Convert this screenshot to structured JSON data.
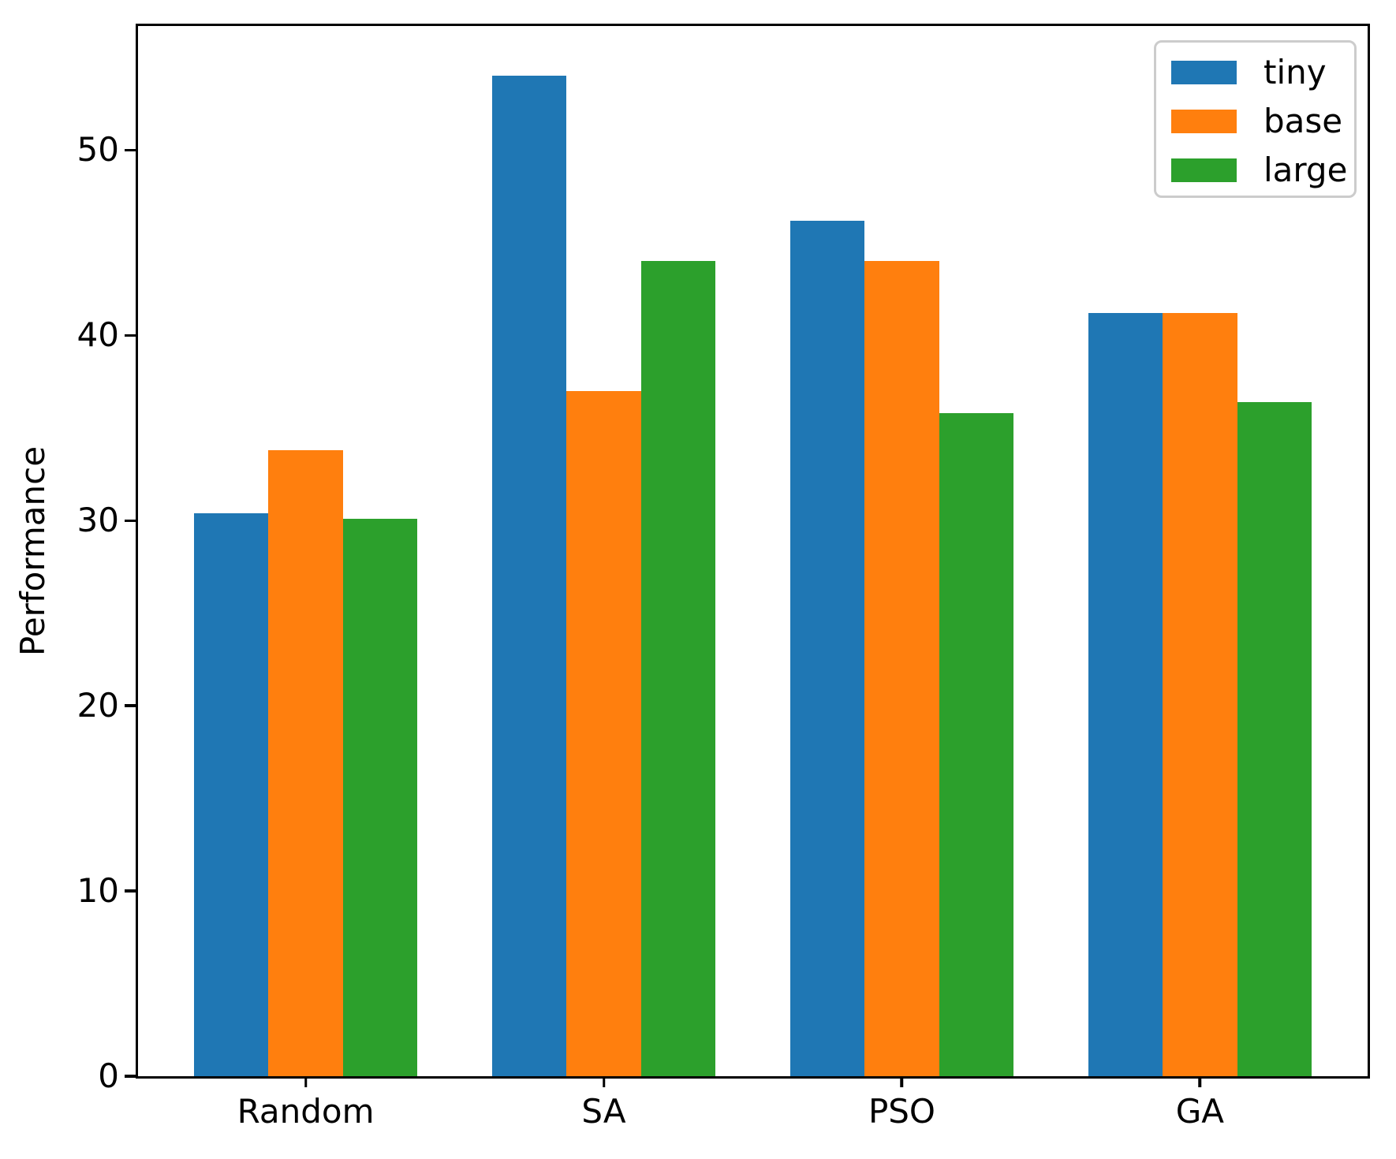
{
  "chart_data": {
    "type": "bar",
    "title": "",
    "xlabel": "",
    "ylabel": "Performance",
    "categories": [
      "Random",
      "SA",
      "PSO",
      "GA"
    ],
    "series": [
      {
        "name": "tiny",
        "color": "#1f77b4",
        "values": [
          30.4,
          54.0,
          46.2,
          41.2
        ]
      },
      {
        "name": "base",
        "color": "#ff7f0e",
        "values": [
          33.8,
          37.0,
          44.0,
          41.2
        ]
      },
      {
        "name": "large",
        "color": "#2ca02c",
        "values": [
          30.1,
          44.0,
          35.8,
          36.4
        ]
      }
    ],
    "yticks": [
      0,
      10,
      20,
      30,
      40,
      50
    ],
    "ylim": [
      0,
      56.7
    ],
    "xlim": [
      -0.5625,
      3.5625
    ],
    "bar_width": 0.25,
    "grid": false,
    "legend": {
      "position": "upper right",
      "entries": [
        "tiny",
        "base",
        "large"
      ]
    },
    "axis_color": "#000000",
    "background_color": "#ffffff"
  }
}
